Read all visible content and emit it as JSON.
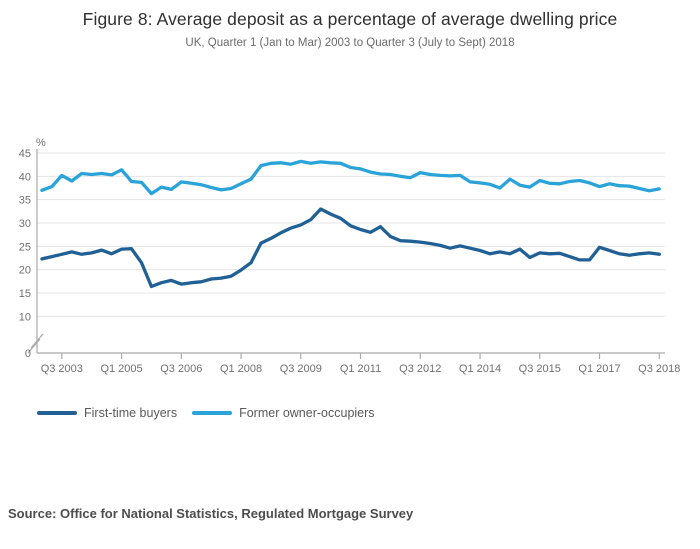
{
  "header": {
    "title": "Figure 8: Average deposit as a percentage of average dwelling price",
    "subtitle": "UK, Quarter 1 (Jan to Mar) 2003 to Quarter 3 (July to Sept) 2018"
  },
  "source": "Source: Office for National Statistics, Regulated Mortgage Survey",
  "colors": {
    "first_time_buyers": "#206095",
    "former_owner_occupiers": "#2aa3d8",
    "grid": "#e4e4e4",
    "axis": "#a9a9a9",
    "tick_text": "#707070"
  },
  "legend": [
    {
      "label": "First-time buyers",
      "color_key": "first_time_buyers"
    },
    {
      "label": "Former owner-occupiers",
      "color_key": "former_owner_occupiers"
    }
  ],
  "chart_data": {
    "type": "line",
    "title": "Figure 8: Average deposit as a percentage of average dwelling price",
    "subtitle": "UK, Quarter 1 (Jan to Mar) 2003 to Quarter 3 (July to Sept) 2018",
    "x_start": "Q1 2003",
    "x_end": "Q3 2018",
    "frequency": "quarterly",
    "grid": "horizontal",
    "legend_position": "bottom",
    "y_axis": {
      "unit": "%",
      "ticks": [
        0,
        10,
        15,
        20,
        25,
        30,
        35,
        40,
        45
      ],
      "axis_break": "between 0 and 10",
      "ylim": [
        0,
        45
      ]
    },
    "x_axis": {
      "ticks": [
        {
          "label": "Q3 2003",
          "index": 2
        },
        {
          "label": "Q1 2005",
          "index": 8
        },
        {
          "label": "Q3 2006",
          "index": 14
        },
        {
          "label": "Q1 2008",
          "index": 20
        },
        {
          "label": "Q3 2009",
          "index": 26
        },
        {
          "label": "Q1 2011",
          "index": 32
        },
        {
          "label": "Q3 2012",
          "index": 38
        },
        {
          "label": "Q1 2014",
          "index": 44
        },
        {
          "label": "Q3 2015",
          "index": 50
        },
        {
          "label": "Q1 2017",
          "index": 56
        },
        {
          "label": "Q3 2018",
          "index": 62
        }
      ]
    },
    "series": [
      {
        "name": "First-time buyers",
        "color_key": "first_time_buyers",
        "values": [
          22.3,
          22.8,
          23.3,
          23.8,
          23.3,
          23.6,
          24.2,
          23.4,
          24.4,
          24.5,
          21.5,
          16.4,
          17.2,
          17.7,
          16.9,
          17.2,
          17.4,
          18.0,
          18.2,
          18.6,
          19.9,
          21.5,
          25.7,
          26.7,
          27.9,
          28.9,
          29.6,
          30.7,
          33.0,
          31.9,
          31.0,
          29.4,
          28.6,
          28.0,
          29.2,
          27.1,
          26.2,
          26.1,
          25.9,
          25.6,
          25.2,
          24.6,
          25.1,
          24.6,
          24.1,
          23.4,
          23.8,
          23.4,
          24.4,
          22.6,
          23.6,
          23.4,
          23.5,
          22.8,
          22.1,
          22.1,
          24.8,
          24.1,
          23.4,
          23.1,
          23.4,
          23.6,
          23.3
        ]
      },
      {
        "name": "Former owner-occupiers",
        "color_key": "former_owner_occupiers",
        "values": [
          37.0,
          37.8,
          40.2,
          39.0,
          40.6,
          40.4,
          40.6,
          40.3,
          41.4,
          38.9,
          38.7,
          36.3,
          37.7,
          37.2,
          38.8,
          38.5,
          38.2,
          37.6,
          37.1,
          37.4,
          38.4,
          39.4,
          42.3,
          42.8,
          42.9,
          42.6,
          43.2,
          42.8,
          43.1,
          42.9,
          42.8,
          41.9,
          41.6,
          40.9,
          40.5,
          40.4,
          40.0,
          39.7,
          40.8,
          40.4,
          40.2,
          40.1,
          40.2,
          38.8,
          38.6,
          38.3,
          37.5,
          39.4,
          38.1,
          37.7,
          39.1,
          38.5,
          38.4,
          38.9,
          39.1,
          38.6,
          37.8,
          38.4,
          38.0,
          37.9,
          37.4,
          36.9,
          37.3
        ]
      }
    ]
  }
}
